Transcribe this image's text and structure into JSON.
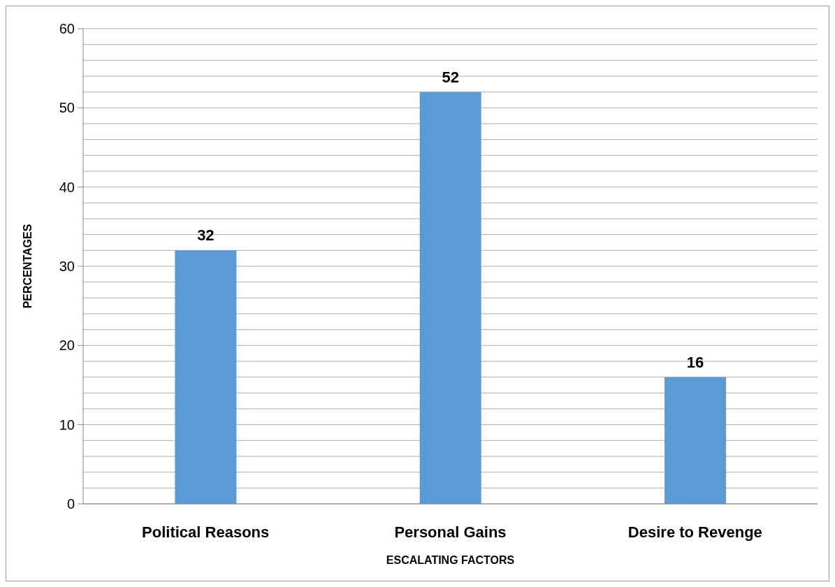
{
  "chart_data": {
    "type": "bar",
    "xlabel": "ESCALATING FACTORS",
    "ylabel": "PERCENTAGES",
    "categories": [
      "Political Reasons",
      "Personal Gains",
      "Desire to Revenge"
    ],
    "values": [
      32,
      52,
      16
    ],
    "color": "#5b9bd5",
    "data_labels": true,
    "ylim": [
      0,
      60
    ],
    "yticks": [
      0,
      {
        "value": 2,
        "label": null
      },
      {
        "value": 4,
        "label": null
      },
      {
        "value": 6,
        "label": null
      },
      {
        "value": 8,
        "label": null
      },
      10,
      {
        "value": 12,
        "label": null
      },
      {
        "value": 14,
        "label": null
      },
      {
        "value": 16,
        "label": null
      },
      {
        "value": 18,
        "label": null
      },
      20,
      {
        "value": 22,
        "label": null
      },
      {
        "value": 24,
        "label": null
      },
      {
        "value": 26,
        "label": null
      },
      {
        "value": 28,
        "label": null
      },
      30,
      {
        "value": 32,
        "label": null
      },
      {
        "value": 34,
        "label": null
      },
      {
        "value": 36,
        "label": null
      },
      {
        "value": 38,
        "label": null
      },
      40,
      {
        "value": 42,
        "label": null
      },
      {
        "value": 44,
        "label": null
      },
      {
        "value": 46,
        "label": null
      },
      {
        "value": 48,
        "label": null
      },
      50,
      {
        "value": 52,
        "label": null
      },
      {
        "value": 54,
        "label": null
      },
      {
        "value": 56,
        "label": null
      },
      {
        "value": 58,
        "label": null
      },
      60
    ],
    "grid": true
  }
}
